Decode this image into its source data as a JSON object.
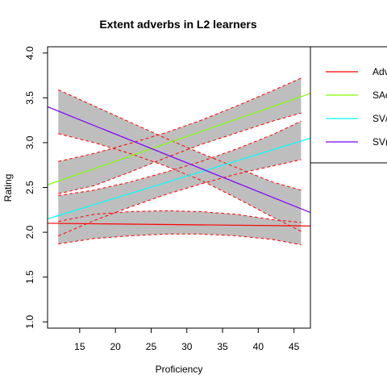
{
  "chart_data": {
    "type": "line",
    "title": "Extent adverbs in L2 learners",
    "xlabel": "Proficiency",
    "ylabel": "Rating",
    "xlim": [
      10.5,
      47.3
    ],
    "ylim": [
      0.93,
      4.07
    ],
    "x_ticks": [
      15,
      20,
      25,
      30,
      35,
      40,
      45
    ],
    "y_ticks": [
      1.0,
      1.5,
      2.0,
      2.5,
      3.0,
      3.5,
      4.0
    ],
    "x_tick_labels": [
      "15",
      "20",
      "25",
      "30",
      "35",
      "40",
      "45"
    ],
    "y_tick_labels": [
      "1.0",
      "1.5",
      "2.0",
      "2.5",
      "3.0",
      "3.5",
      "4.0"
    ],
    "legend_placement": "top-right (clipped)",
    "grid": false,
    "band_color": "#bebebe",
    "band_edge_color": "#ff0000",
    "ci_bands": [
      {
        "x": [
          12,
          17,
          22,
          27,
          32,
          37,
          42,
          46
        ],
        "upper": [
          2.12,
          2.2,
          2.23,
          2.24,
          2.23,
          2.2,
          2.14,
          2.11
        ],
        "lower": [
          1.87,
          1.93,
          1.96,
          1.98,
          1.98,
          1.96,
          1.92,
          1.86
        ]
      },
      {
        "x": [
          12,
          17,
          22,
          27,
          32,
          37,
          42,
          46
        ],
        "upper": [
          2.79,
          2.88,
          2.99,
          3.11,
          3.25,
          3.41,
          3.58,
          3.72
        ],
        "lower": [
          2.43,
          2.52,
          2.67,
          2.83,
          2.98,
          3.11,
          3.24,
          3.33
        ]
      },
      {
        "x": [
          12,
          17,
          22,
          27,
          32,
          37,
          42,
          46
        ],
        "upper": [
          2.41,
          2.47,
          2.56,
          2.67,
          2.79,
          2.93,
          3.09,
          3.24
        ],
        "lower": [
          1.96,
          2.13,
          2.28,
          2.42,
          2.54,
          2.65,
          2.74,
          2.81
        ]
      },
      {
        "x": [
          12,
          17,
          22,
          27,
          32,
          37,
          42,
          46
        ],
        "upper": [
          3.59,
          3.41,
          3.23,
          3.05,
          2.88,
          2.72,
          2.56,
          2.47
        ],
        "lower": [
          3.1,
          3.0,
          2.88,
          2.74,
          2.58,
          2.38,
          2.17,
          2.01
        ]
      }
    ],
    "series": [
      {
        "name": "Adv",
        "color": "#ff0000",
        "x": [
          10.5,
          47.3
        ],
        "y": [
          2.1,
          2.07
        ]
      },
      {
        "name": "SA",
        "color": "#80ff00",
        "x": [
          10.5,
          47.3
        ],
        "y": [
          2.53,
          3.55
        ]
      },
      {
        "name": "SV",
        "color": "#00ffff",
        "x": [
          10.5,
          47.3
        ],
        "y": [
          2.15,
          3.05
        ]
      },
      {
        "name": "SV",
        "color": "#8000ff",
        "x": [
          10.5,
          47.3
        ],
        "y": [
          3.4,
          2.22
        ]
      }
    ],
    "legend_labels": [
      "Adv",
      "SAc",
      "SV/",
      "SV("
    ]
  }
}
